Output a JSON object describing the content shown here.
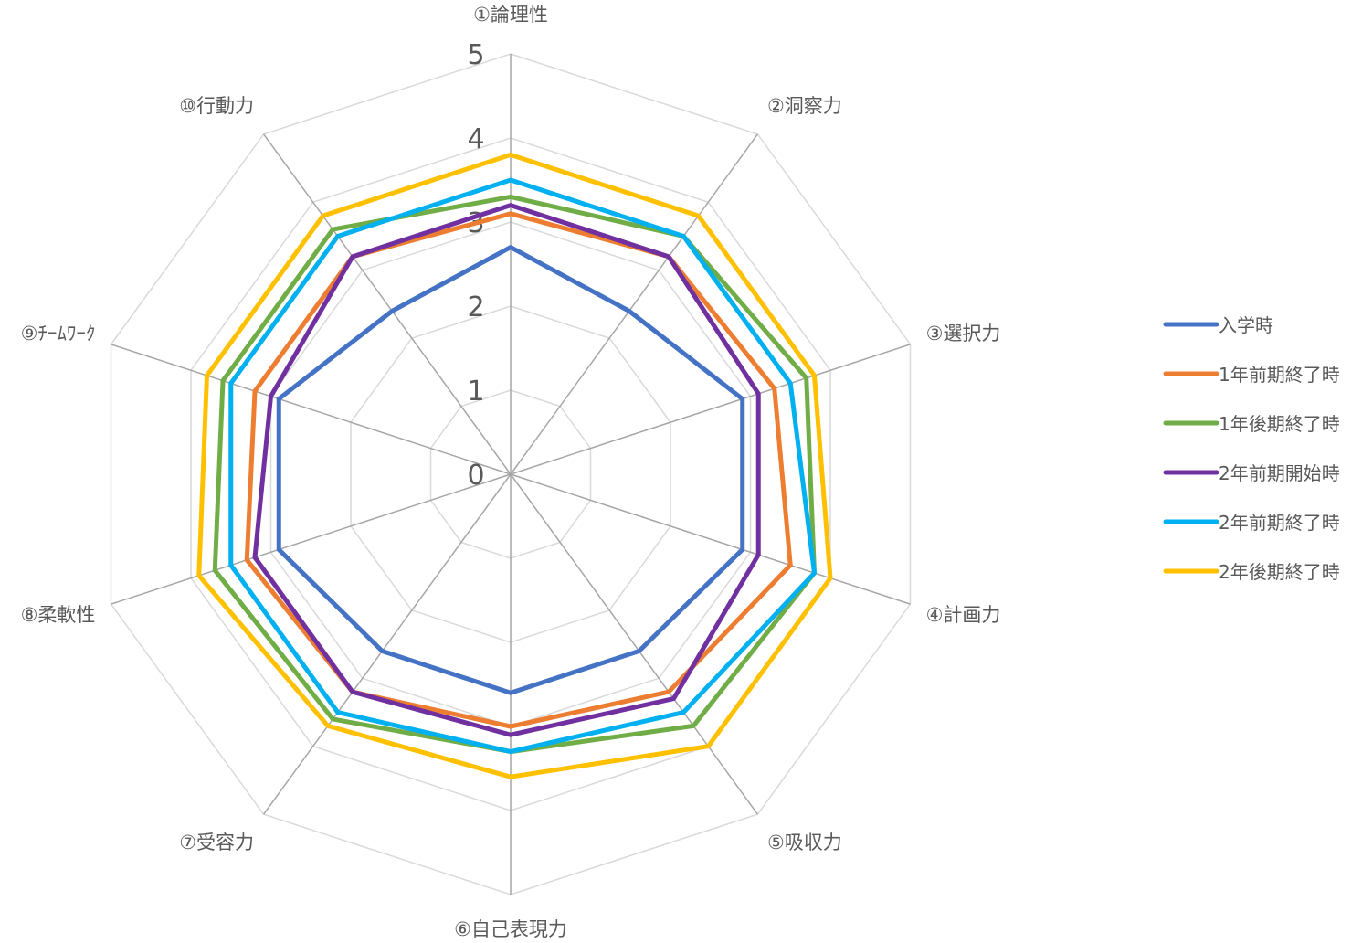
{
  "chart_data": {
    "type": "radar",
    "axes": [
      "①論理性",
      "②洞察力",
      "③選択力",
      "④計画力",
      "⑤吸収力",
      "⑥自己表現力",
      "⑦受容力",
      "⑧柔軟性",
      "⑨ﾁｰﾑﾜｰｸ",
      "⑩行動力"
    ],
    "ticks": [
      "0",
      "1",
      "2",
      "3",
      "4",
      "5"
    ],
    "range": [
      0,
      5
    ],
    "grid": true,
    "legend_position": "right",
    "series": [
      {
        "name": "入学時",
        "color": "#4472C4",
        "values": [
          2.7,
          2.4,
          2.9,
          2.9,
          2.6,
          2.6,
          2.6,
          2.9,
          2.9,
          2.4
        ]
      },
      {
        "name": "1年前期終了時",
        "color": "#ED7D31",
        "values": [
          3.1,
          3.2,
          3.3,
          3.5,
          3.2,
          3.0,
          3.2,
          3.3,
          3.2,
          3.2
        ]
      },
      {
        "name": "1年後期終了時",
        "color": "#70AD47",
        "values": [
          3.3,
          3.5,
          3.7,
          3.8,
          3.7,
          3.3,
          3.6,
          3.7,
          3.6,
          3.6
        ]
      },
      {
        "name": "2年前期開始時",
        "color": "#7030A0",
        "values": [
          3.2,
          3.2,
          3.1,
          3.1,
          3.3,
          3.1,
          3.2,
          3.2,
          3.0,
          3.2
        ]
      },
      {
        "name": "2年前期終了時",
        "color": "#00B0F0",
        "values": [
          3.5,
          3.5,
          3.5,
          3.8,
          3.5,
          3.3,
          3.5,
          3.5,
          3.5,
          3.5
        ]
      },
      {
        "name": "2年後期終了時",
        "color": "#FFC000",
        "values": [
          3.8,
          3.8,
          3.8,
          4.0,
          4.0,
          3.6,
          3.7,
          3.9,
          3.8,
          3.8
        ]
      }
    ]
  }
}
